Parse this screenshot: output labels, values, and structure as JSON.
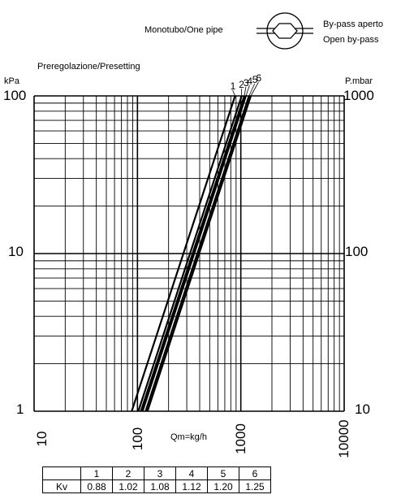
{
  "header": {
    "mode_label": "Monotubo/One pipe",
    "bypass_line1": "By-pass aperto",
    "bypass_line2": "Open by-pass"
  },
  "chart_data": {
    "type": "line",
    "title": "Preregolazione/Presetting",
    "xlabel": "Qm=kg/h",
    "ylabel_left": "kPa",
    "ylabel_right": "P.mbar",
    "x_scale": "log",
    "y_scale": "log",
    "xlim": [
      10,
      10000
    ],
    "ylim": [
      1,
      100
    ],
    "x_ticks": [
      "10",
      "100",
      "1000",
      "10000"
    ],
    "y_ticks_left": [
      "1",
      "10",
      "100"
    ],
    "y_ticks_right": [
      "10",
      "100",
      "1000"
    ],
    "grid": true,
    "legend": "curve labels at top of lines",
    "series": [
      {
        "name": "1",
        "kv": 0.88,
        "x": [
          88,
          880
        ],
        "y": [
          1,
          100
        ]
      },
      {
        "name": "2",
        "kv": 1.02,
        "x": [
          102,
          1020
        ],
        "y": [
          1,
          100
        ]
      },
      {
        "name": "3",
        "kv": 1.08,
        "x": [
          108,
          1080
        ],
        "y": [
          1,
          100
        ]
      },
      {
        "name": "4",
        "kv": 1.12,
        "x": [
          112,
          1120
        ],
        "y": [
          1,
          100
        ]
      },
      {
        "name": "5",
        "kv": 1.2,
        "x": [
          120,
          1200
        ],
        "y": [
          1,
          100
        ]
      },
      {
        "name": "6",
        "kv": 1.25,
        "x": [
          125,
          1250
        ],
        "y": [
          1,
          100
        ]
      }
    ]
  },
  "kv_table": {
    "row_label": "Kv",
    "positions": [
      "1",
      "2",
      "3",
      "4",
      "5",
      "6"
    ],
    "values": [
      "0.88",
      "1.02",
      "1.08",
      "1.12",
      "1.20",
      "1.25"
    ]
  }
}
